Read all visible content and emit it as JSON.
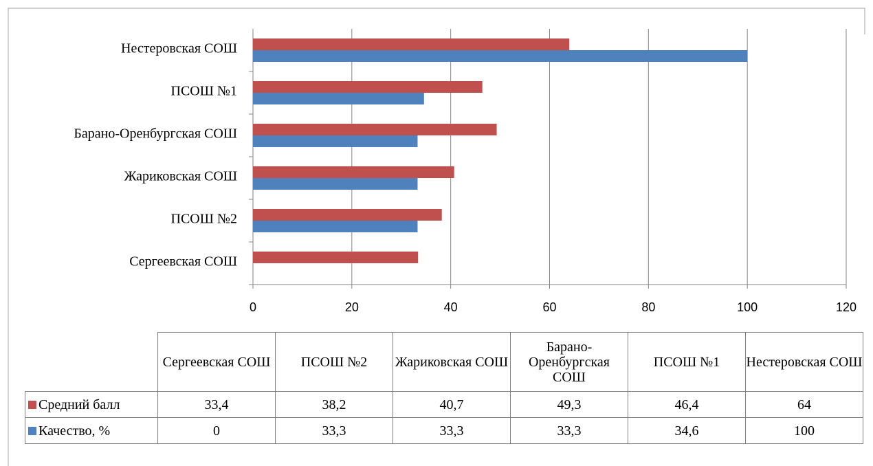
{
  "chart_data": {
    "type": "bar",
    "orientation": "horizontal",
    "categories": [
      "Сергеевская СОШ",
      "ПСОШ №2",
      "Жариковская СОШ",
      "Барано-Оренбургская СОШ",
      "ПСОШ №1",
      "Нестеровская СОШ"
    ],
    "series": [
      {
        "name": "Средний балл",
        "color": "#c0504d",
        "values": [
          33.4,
          38.2,
          40.7,
          49.3,
          46.4,
          64
        ],
        "value_labels": [
          "33,4",
          "38,2",
          "40,7",
          "49,3",
          "46,4",
          "64"
        ]
      },
      {
        "name": "Качество, %",
        "color": "#4f81bd",
        "values": [
          0,
          33.3,
          33.3,
          33.3,
          34.6,
          100
        ],
        "value_labels": [
          "0",
          "33,3",
          "33,3",
          "33,3",
          "34,6",
          "100"
        ]
      }
    ],
    "xlim": [
      0,
      120
    ],
    "xticks": [
      0,
      20,
      40,
      60,
      80,
      100,
      120
    ],
    "grid": true
  }
}
